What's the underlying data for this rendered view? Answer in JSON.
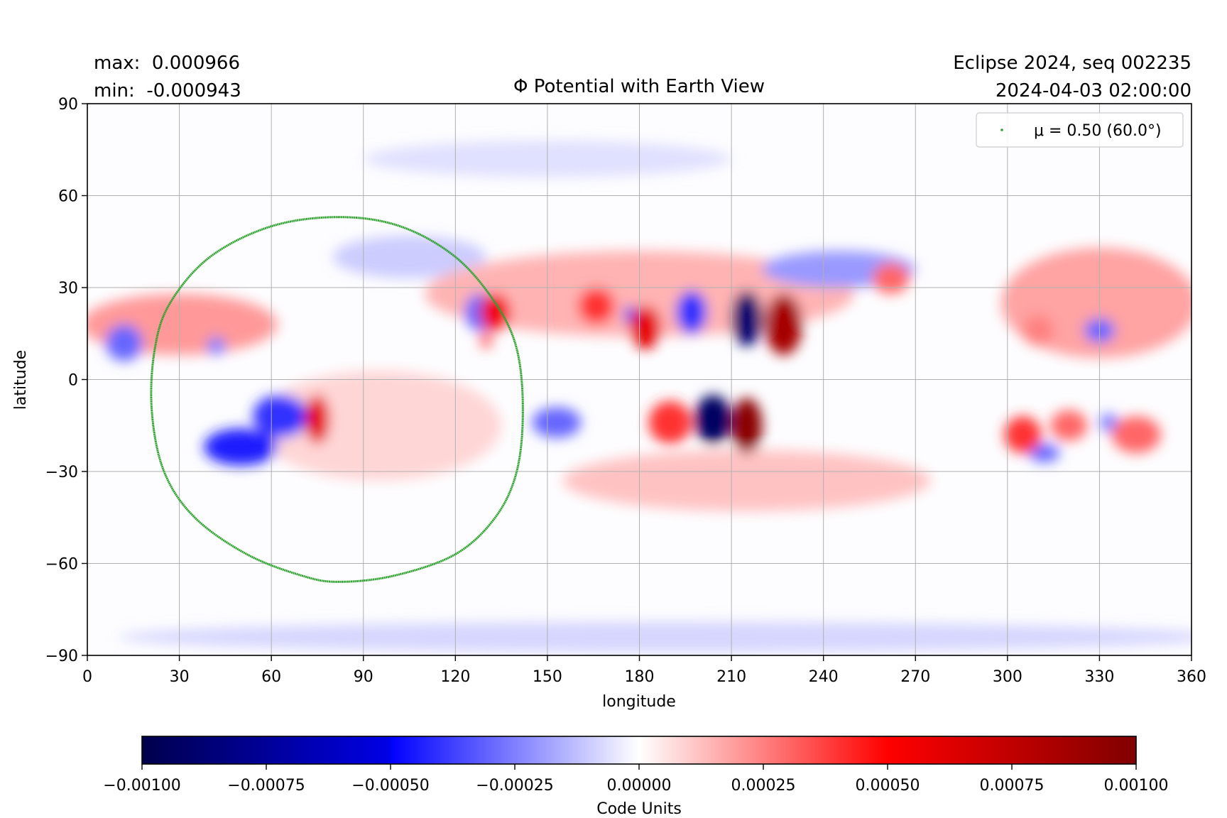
{
  "chart_data": {
    "type": "heatmap",
    "title": "Φ Potential with Earth View",
    "stats": {
      "max": "max:  0.000966",
      "min": "min:  -0.000943"
    },
    "header_right": [
      "Eclipse 2024, seq 002235",
      "2024-04-03 02:00:00"
    ],
    "xlabel": "longitude",
    "ylabel": "latitude",
    "xlim": [
      0,
      360
    ],
    "ylim": [
      -90,
      90
    ],
    "xticks": [
      "0",
      "30",
      "60",
      "90",
      "120",
      "150",
      "180",
      "210",
      "240",
      "270",
      "300",
      "330",
      "360"
    ],
    "yticks": [
      "90",
      "60",
      "30",
      "0",
      "−30",
      "−60",
      "−90"
    ],
    "grid": true,
    "colormap": "seismic",
    "colorbar": {
      "label": "Code Units",
      "range": [
        -0.001,
        0.001
      ],
      "ticks": [
        "−0.00100",
        "−0.00075",
        "−0.00050",
        "−0.00025",
        "0.00000",
        "0.00025",
        "0.00050",
        "0.00075",
        "0.00100"
      ]
    },
    "features": [
      {
        "lon": 180,
        "lat": 28,
        "dlon": 70,
        "dlat": 14,
        "value": 0.00015
      },
      {
        "lon": 30,
        "lat": 18,
        "dlon": 32,
        "dlat": 10,
        "value": 0.0002
      },
      {
        "lon": 330,
        "lat": 25,
        "dlon": 32,
        "dlat": 18,
        "value": 0.00018
      },
      {
        "lon": 215,
        "lat": -33,
        "dlon": 60,
        "dlat": 10,
        "value": 0.00012
      },
      {
        "lon": 95,
        "lat": -15,
        "dlon": 40,
        "dlat": 18,
        "value": 8e-05
      },
      {
        "lon": 245,
        "lat": 36,
        "dlon": 25,
        "dlat": 6,
        "value": -0.0002
      },
      {
        "lon": 105,
        "lat": 40,
        "dlon": 25,
        "dlat": 7,
        "value": -0.0001
      },
      {
        "lon": 190,
        "lat": -84,
        "dlon": 180,
        "dlat": 5,
        "value": -8e-05
      },
      {
        "lon": 150,
        "lat": 72,
        "dlon": 60,
        "dlat": 6,
        "value": -6e-05
      },
      {
        "lon": 12,
        "lat": 12,
        "dlon": 6,
        "dlat": 6,
        "value": -0.0003
      },
      {
        "lon": 42,
        "lat": 11,
        "dlon": 3,
        "dlat": 3,
        "value": -0.00025
      },
      {
        "lon": 50,
        "lat": -22,
        "dlon": 12,
        "dlat": 6,
        "value": -0.00045
      },
      {
        "lon": 63,
        "lat": -12,
        "dlon": 9,
        "dlat": 7,
        "value": -0.0004
      },
      {
        "lon": 75,
        "lat": -13,
        "dlon": 4,
        "dlat": 8,
        "value": 0.0006
      },
      {
        "lon": 128,
        "lat": 22,
        "dlon": 5,
        "dlat": 6,
        "value": -0.0003
      },
      {
        "lon": 133,
        "lat": 22,
        "dlon": 5,
        "dlat": 6,
        "value": 0.00055
      },
      {
        "lon": 130,
        "lat": 13,
        "dlon": 2,
        "dlat": 3,
        "value": 0.0003
      },
      {
        "lon": 153,
        "lat": -14,
        "dlon": 8,
        "dlat": 5,
        "value": -0.0003
      },
      {
        "lon": 166,
        "lat": 24,
        "dlon": 6,
        "dlat": 6,
        "value": 0.0004
      },
      {
        "lon": 177,
        "lat": 21,
        "dlon": 2,
        "dlat": 3,
        "value": -0.0004
      },
      {
        "lon": 182,
        "lat": 17,
        "dlon": 5,
        "dlat": 7,
        "value": 0.0006
      },
      {
        "lon": 197,
        "lat": 22,
        "dlon": 5,
        "dlat": 7,
        "value": -0.0004
      },
      {
        "lon": 215,
        "lat": 20,
        "dlon": 5,
        "dlat": 9,
        "value": -0.0009
      },
      {
        "lon": 227,
        "lat": 18,
        "dlon": 6,
        "dlat": 10,
        "value": 0.00085
      },
      {
        "lon": 190,
        "lat": -14,
        "dlon": 7,
        "dlat": 7,
        "value": 0.0004
      },
      {
        "lon": 204,
        "lat": -13,
        "dlon": 6,
        "dlat": 8,
        "value": -0.00094
      },
      {
        "lon": 215,
        "lat": -15,
        "dlon": 5,
        "dlat": 9,
        "value": 0.00096
      },
      {
        "lon": 262,
        "lat": 33,
        "dlon": 6,
        "dlat": 5,
        "value": 0.0003
      },
      {
        "lon": 305,
        "lat": -18,
        "dlon": 6,
        "dlat": 6,
        "value": 0.0004
      },
      {
        "lon": 320,
        "lat": -15,
        "dlon": 6,
        "dlat": 5,
        "value": 0.0003
      },
      {
        "lon": 312,
        "lat": -24,
        "dlon": 5,
        "dlat": 3,
        "value": -0.0003
      },
      {
        "lon": 342,
        "lat": -18,
        "dlon": 8,
        "dlat": 6,
        "value": 0.0003
      },
      {
        "lon": 333,
        "lat": -14,
        "dlon": 3,
        "dlat": 3,
        "value": -0.00025
      },
      {
        "lon": 330,
        "lat": 16,
        "dlon": 5,
        "dlat": 4,
        "value": -0.0003
      },
      {
        "lon": 310,
        "lat": 16,
        "dlon": 5,
        "dlat": 5,
        "value": 0.00025
      }
    ],
    "series": [
      {
        "name": "μ = 0.50 (60.0°)",
        "type": "scatter",
        "color": "#2ca02c",
        "lon": [
          82,
          60,
          40,
          27,
          22,
          21,
          25,
          35,
          52,
          70,
          82,
          100,
          120,
          133,
          140,
          142,
          140,
          133,
          120,
          102
        ],
        "lat": [
          53,
          50,
          40,
          25,
          10,
          -10,
          -30,
          -45,
          -57,
          -64,
          -66,
          -64,
          -57,
          -45,
          -30,
          -10,
          10,
          25,
          40,
          50
        ]
      }
    ],
    "legend": {
      "placement": "upper-right",
      "entries": [
        "μ = 0.50 (60.0°)"
      ]
    }
  }
}
